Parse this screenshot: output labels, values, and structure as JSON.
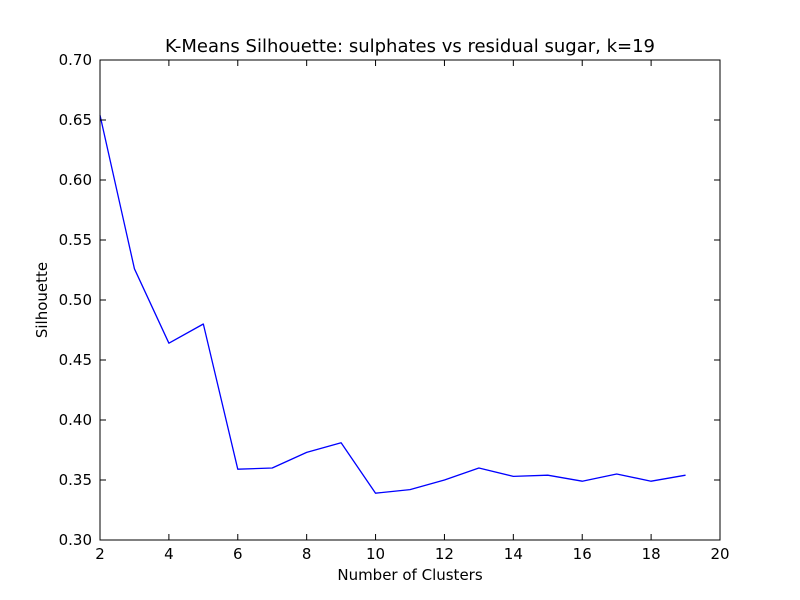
{
  "chart_data": {
    "type": "line",
    "title": "K-Means Silhouette: sulphates vs residual sugar, k=19",
    "xlabel": "Number of Clusters",
    "ylabel": "Silhouette",
    "xlim": [
      2,
      20
    ],
    "ylim": [
      0.3,
      0.7
    ],
    "x_ticks": [
      "2",
      "4",
      "6",
      "8",
      "10",
      "12",
      "14",
      "16",
      "18",
      "20"
    ],
    "y_ticks": [
      "0.30",
      "0.35",
      "0.40",
      "0.45",
      "0.50",
      "0.55",
      "0.60",
      "0.65",
      "0.70"
    ],
    "grid": false,
    "legend": false,
    "series": [
      {
        "color": "#0000ff",
        "x": [
          2,
          3,
          4,
          5,
          6,
          7,
          8,
          9,
          10,
          11,
          12,
          13,
          14,
          15,
          16,
          17,
          18,
          19
        ],
        "values": [
          0.654,
          0.526,
          0.464,
          0.48,
          0.359,
          0.36,
          0.373,
          0.381,
          0.339,
          0.342,
          0.35,
          0.36,
          0.353,
          0.354,
          0.349,
          0.355,
          0.349,
          0.354
        ]
      }
    ]
  }
}
